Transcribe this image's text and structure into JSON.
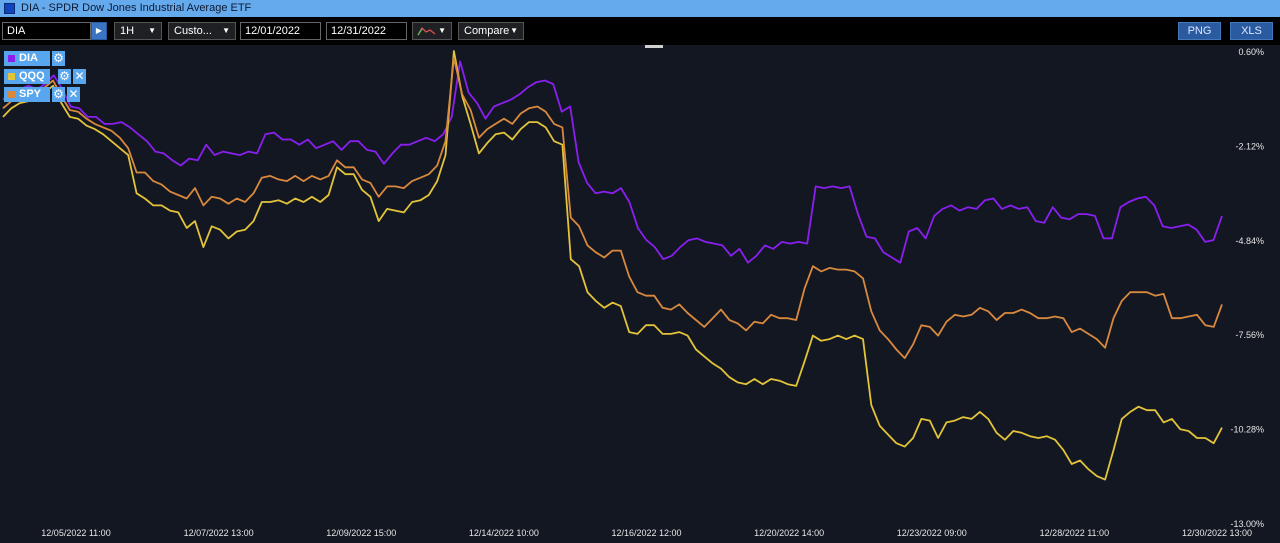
{
  "window": {
    "title": "DIA - SPDR Dow Jones Industrial Average ETF"
  },
  "toolbar": {
    "symbol": "DIA",
    "go_icon": "play-arrow-icon",
    "interval": "1H",
    "range": "Custo...",
    "start_date": "12/01/2022",
    "end_date": "12/31/2022",
    "chart_style_icon": "line-chart-icon",
    "compare": "Compare",
    "png": "PNG",
    "xls": "XLS"
  },
  "legend": [
    {
      "name": "DIA",
      "color": "#8a1ff0",
      "icons": [
        "gear-icon"
      ]
    },
    {
      "name": "QQQ",
      "color": "#e2c33a",
      "icons": [
        "gear-icon",
        "close-icon"
      ]
    },
    {
      "name": "SPY",
      "color": "#d9893e",
      "icons": [
        "gear-icon",
        "close-icon"
      ]
    }
  ],
  "chart_data": {
    "type": "line",
    "x_tick_labels": [
      "12/05/2022 11:00",
      "12/07/2022 13:00",
      "12/09/2022 15:00",
      "12/14/2022 10:00",
      "12/16/2022 12:00",
      "12/20/2022 14:00",
      "12/23/2022 09:00",
      "12/28/2022 11:00",
      "12/30/2022 13:00"
    ],
    "y_tick_labels": [
      "0.60%",
      "-2.12%",
      "-4.84%",
      "-7.56%",
      "-10.28%",
      "-13.00%"
    ],
    "ylim": [
      -13.0,
      0.6
    ],
    "y_unit": "%",
    "grid": false,
    "series": [
      {
        "name": "DIA",
        "color": "#8a1ff0",
        "values": [
          -0.8,
          -0.6,
          -0.5,
          -0.4,
          -0.5,
          -0.35,
          -0.1,
          -0.5,
          -1.0,
          -1.05,
          -1.3,
          -1.3,
          -1.5,
          -1.5,
          -1.45,
          -1.6,
          -1.8,
          -2.0,
          -2.3,
          -2.35,
          -2.55,
          -2.7,
          -2.5,
          -2.55,
          -2.1,
          -2.4,
          -2.3,
          -2.35,
          -2.4,
          -2.3,
          -2.35,
          -1.8,
          -1.75,
          -1.95,
          -1.95,
          -2.1,
          -1.95,
          -2.2,
          -2.1,
          -2.0,
          -2.25,
          -2.0,
          -2.0,
          -2.25,
          -2.3,
          -2.65,
          -2.35,
          -2.1,
          -2.1,
          -2.0,
          -1.9,
          -2.0,
          -1.8,
          -1.3,
          0.3,
          -0.6,
          -0.9,
          -1.35,
          -1.0,
          -0.9,
          -0.8,
          -0.65,
          -0.45,
          -0.3,
          -0.25,
          -0.35,
          -1.15,
          -1.0,
          -2.6,
          -3.2,
          -3.5,
          -3.45,
          -3.5,
          -3.35,
          -3.75,
          -4.5,
          -4.85,
          -5.05,
          -5.4,
          -5.3,
          -5.05,
          -4.85,
          -4.8,
          -4.9,
          -4.95,
          -5.0,
          -5.3,
          -5.1,
          -5.5,
          -5.3,
          -5.0,
          -5.1,
          -4.9,
          -4.95,
          -4.9,
          -4.95,
          -3.3,
          -3.35,
          -3.3,
          -3.35,
          -3.3,
          -4.1,
          -4.75,
          -4.8,
          -5.2,
          -5.35,
          -5.5,
          -4.6,
          -4.5,
          -4.8,
          -4.15,
          -3.95,
          -3.85,
          -4.0,
          -3.9,
          -3.95,
          -3.7,
          -3.65,
          -3.95,
          -3.85,
          -3.95,
          -3.9,
          -4.3,
          -4.35,
          -3.9,
          -4.2,
          -4.25,
          -4.1,
          -4.1,
          -4.15,
          -4.8,
          -4.8,
          -3.9,
          -3.75,
          -3.65,
          -3.6,
          -3.85,
          -4.45,
          -4.5,
          -4.45,
          -4.4,
          -4.55,
          -4.9,
          -4.85,
          -4.15
        ]
      },
      {
        "name": "QQQ",
        "color": "#e2c33a",
        "values": [
          -1.3,
          -1.05,
          -0.9,
          -0.85,
          -0.75,
          -0.6,
          -0.4,
          -0.9,
          -1.3,
          -1.35,
          -1.55,
          -1.65,
          -1.8,
          -2.0,
          -2.2,
          -2.4,
          -3.5,
          -3.65,
          -3.85,
          -3.85,
          -4.0,
          -4.05,
          -4.5,
          -4.3,
          -5.05,
          -4.45,
          -4.55,
          -4.8,
          -4.6,
          -4.55,
          -4.3,
          -3.75,
          -3.75,
          -3.7,
          -3.8,
          -3.65,
          -3.75,
          -3.6,
          -3.75,
          -3.55,
          -2.75,
          -2.95,
          -2.95,
          -3.4,
          -3.6,
          -4.3,
          -3.95,
          -4.0,
          -4.05,
          -3.75,
          -3.7,
          -3.55,
          -3.15,
          -2.4,
          0.6,
          -0.7,
          -1.5,
          -2.35,
          -2.05,
          -1.8,
          -1.75,
          -1.95,
          -1.65,
          -1.45,
          -1.45,
          -1.6,
          -2.0,
          -2.1,
          -5.4,
          -5.6,
          -6.35,
          -6.6,
          -6.8,
          -6.65,
          -6.75,
          -7.5,
          -7.55,
          -7.3,
          -7.3,
          -7.55,
          -7.55,
          -7.5,
          -7.6,
          -8.0,
          -8.2,
          -8.4,
          -8.55,
          -8.8,
          -8.95,
          -9.0,
          -8.85,
          -9.0,
          -8.85,
          -8.9,
          -9.0,
          -9.05,
          -8.35,
          -7.6,
          -7.75,
          -7.7,
          -7.6,
          -7.7,
          -7.6,
          -7.7,
          -9.6,
          -10.2,
          -10.45,
          -10.7,
          -10.8,
          -10.55,
          -10.0,
          -10.05,
          -10.55,
          -10.1,
          -10.05,
          -9.95,
          -10.0,
          -9.8,
          -10.0,
          -10.4,
          -10.6,
          -10.35,
          -10.4,
          -10.5,
          -10.55,
          -10.5,
          -10.6,
          -10.9,
          -11.3,
          -11.2,
          -11.45,
          -11.65,
          -11.75,
          -10.9,
          -10.0,
          -9.8,
          -9.65,
          -9.75,
          -9.75,
          -10.1,
          -10.0,
          -10.3,
          -10.35,
          -10.55,
          -10.55,
          -10.7,
          -10.25
        ]
      },
      {
        "name": "SPY",
        "color": "#d9893e",
        "values": [
          -1.05,
          -0.85,
          -0.7,
          -0.65,
          -0.55,
          -0.45,
          -0.25,
          -0.7,
          -1.1,
          -1.15,
          -1.35,
          -1.5,
          -1.6,
          -1.7,
          -1.9,
          -2.2,
          -2.9,
          -2.9,
          -3.15,
          -3.25,
          -3.45,
          -3.55,
          -3.65,
          -3.35,
          -3.85,
          -3.6,
          -3.65,
          -3.8,
          -3.65,
          -3.75,
          -3.5,
          -3.05,
          -3.0,
          -3.1,
          -3.15,
          -3.0,
          -3.15,
          -3.0,
          -3.1,
          -3.0,
          -2.55,
          -2.75,
          -2.75,
          -3.1,
          -3.2,
          -3.6,
          -3.3,
          -3.3,
          -3.35,
          -3.15,
          -3.05,
          -2.95,
          -2.7,
          -2.0,
          0.4,
          -0.65,
          -1.1,
          -1.9,
          -1.65,
          -1.5,
          -1.35,
          -1.5,
          -1.2,
          -1.05,
          -1.0,
          -1.15,
          -1.5,
          -1.6,
          -4.2,
          -4.45,
          -5.0,
          -5.2,
          -5.35,
          -5.15,
          -5.15,
          -5.9,
          -6.35,
          -6.45,
          -6.45,
          -6.8,
          -6.85,
          -6.7,
          -6.95,
          -7.15,
          -7.35,
          -7.1,
          -6.85,
          -7.15,
          -7.25,
          -7.45,
          -7.2,
          -7.25,
          -7.0,
          -7.1,
          -7.1,
          -7.15,
          -6.25,
          -5.6,
          -5.75,
          -5.65,
          -5.7,
          -5.7,
          -5.75,
          -5.95,
          -6.9,
          -7.45,
          -7.7,
          -8.0,
          -8.25,
          -7.85,
          -7.3,
          -7.35,
          -7.6,
          -7.2,
          -7.0,
          -7.05,
          -7.0,
          -6.8,
          -6.9,
          -7.15,
          -6.95,
          -6.95,
          -6.85,
          -6.95,
          -7.1,
          -7.1,
          -7.05,
          -7.1,
          -7.5,
          -7.4,
          -7.55,
          -7.7,
          -7.95,
          -7.1,
          -6.6,
          -6.35,
          -6.35,
          -6.35,
          -6.45,
          -6.4,
          -7.1,
          -7.1,
          -7.05,
          -7.0,
          -7.3,
          -7.35,
          -6.7
        ]
      }
    ]
  }
}
